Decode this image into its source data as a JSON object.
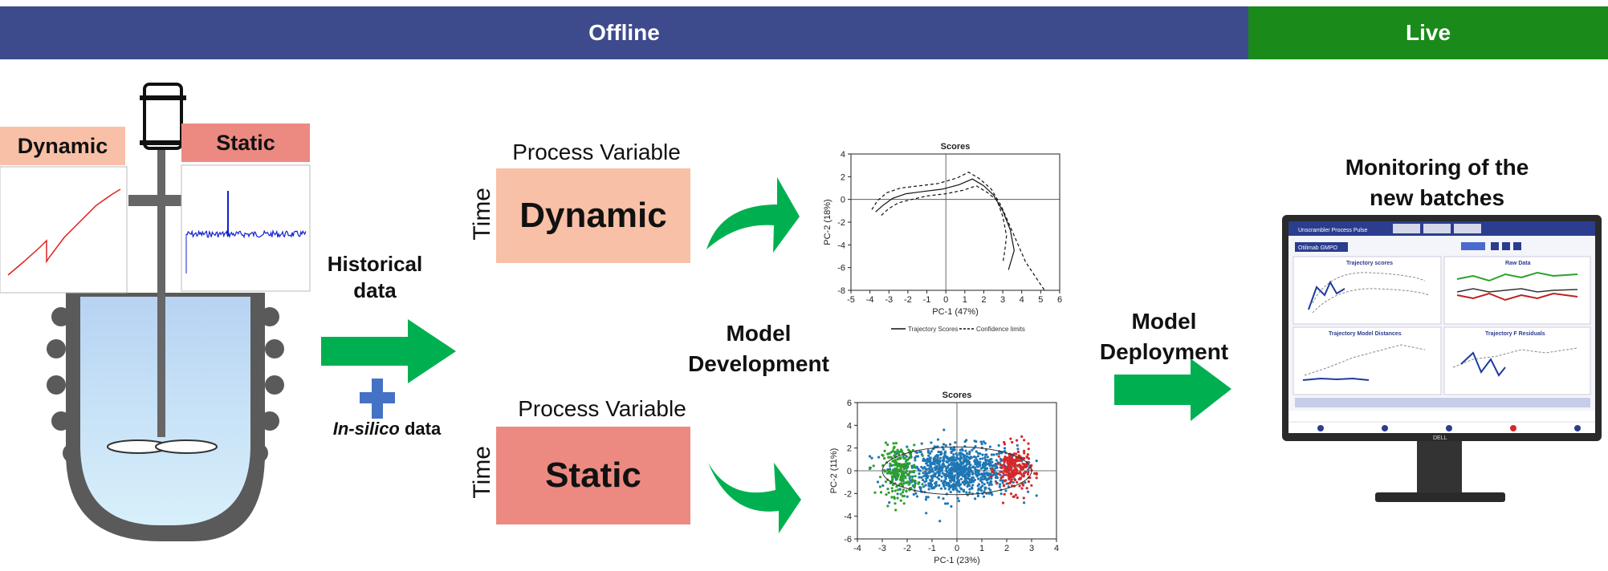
{
  "banners": {
    "offline": "Offline",
    "live": "Live"
  },
  "left": {
    "dynamic_tag": "Dynamic",
    "static_tag": "Static"
  },
  "middle": {
    "historical": "Historical\ndata",
    "in_silico_italic": "In-silico",
    "in_silico_rest": " data",
    "model_development": "Model\nDevelopment"
  },
  "boxes": {
    "top_header": "Process Variable",
    "top_label": "Dynamic",
    "bottom_header": "Process Variable",
    "bottom_label": "Static",
    "time_label": "Time"
  },
  "right": {
    "model_deployment": "Model\nDeployment",
    "monitoring": "Monitoring of the\nnew batches"
  },
  "chart_data": [
    {
      "type": "line",
      "title": "Scores",
      "xlabel": "PC-1 (47%)",
      "ylabel": "PC-2 (18%)",
      "xlim": [
        -5,
        6
      ],
      "ylim": [
        -8,
        4
      ],
      "xticks": [
        "-5",
        "-4",
        "-3",
        "-2",
        "-1",
        "0",
        "1",
        "2",
        "3",
        "4",
        "5",
        "6"
      ],
      "yticks": [
        "4",
        "2",
        "0",
        "-2",
        "-4",
        "-6",
        "-8"
      ],
      "legend": [
        "Trajectory Scores",
        "Confidence limits"
      ],
      "series": [
        {
          "name": "Trajectory Scores",
          "x": [
            -3.7,
            -3.3,
            -2.8,
            -2.1,
            -1.2,
            -0.2,
            0.7,
            1.4,
            2.0,
            2.5,
            3.0,
            3.4,
            3.6,
            3.3
          ],
          "y": [
            -1.1,
            -0.5,
            0.1,
            0.5,
            0.7,
            0.9,
            1.3,
            1.8,
            1.2,
            0.4,
            -1.0,
            -2.7,
            -4.5,
            -6.2
          ]
        },
        {
          "name": "Confidence limits",
          "x": [
            -3.9,
            -3.6,
            -3.1,
            -2.4,
            -1.4,
            -0.4,
            0.6,
            1.2,
            1.8,
            2.4,
            2.9,
            3.5,
            4.2,
            5.2
          ],
          "y": [
            -0.9,
            -0.1,
            0.6,
            1.0,
            1.2,
            1.4,
            1.9,
            2.4,
            1.8,
            0.9,
            -0.5,
            -2.8,
            -5.5,
            -8.0
          ]
        },
        {
          "name": "Confidence limits",
          "x": [
            -3.4,
            -3.0,
            -2.5,
            -1.8,
            -1.0,
            0.0,
            0.9,
            1.6,
            2.2,
            2.7,
            3.0,
            3.2,
            3.1,
            3.0
          ],
          "y": [
            -1.4,
            -0.8,
            -0.3,
            0.0,
            0.3,
            0.5,
            0.8,
            1.2,
            0.6,
            -0.1,
            -1.5,
            -3.2,
            -4.6,
            -5.6
          ]
        }
      ]
    },
    {
      "type": "scatter",
      "title": "Scores",
      "xlabel": "PC-1 (23%)",
      "ylabel": "PC-2 (11%)",
      "xlim": [
        -4,
        4
      ],
      "ylim": [
        -6,
        6
      ],
      "xticks": [
        "-4",
        "-3",
        "-2",
        "-1",
        "0",
        "1",
        "2",
        "3",
        "4"
      ],
      "yticks": [
        "6",
        "4",
        "2",
        "0",
        "-2",
        "-4",
        "-6"
      ],
      "series": [
        {
          "color": "#1f77b4",
          "cx": 0.0,
          "cy": 0.0,
          "sx": 1.2,
          "sy": 1.1,
          "n": 900
        },
        {
          "color": "#2ca02c",
          "cx": -2.3,
          "cy": 0.0,
          "sx": 0.35,
          "sy": 1.1,
          "n": 220
        },
        {
          "color": "#d62728",
          "cx": 2.3,
          "cy": 0.1,
          "sx": 0.35,
          "sy": 1.0,
          "n": 220
        }
      ]
    }
  ],
  "monitor": {
    "app_title": "Unscrambler Process Pulse",
    "project": "Otilimab GMPO",
    "panel1": "Trajectory scores",
    "panel2": "Raw Data",
    "panel3": "Trajectory Model Distances",
    "panel4": "Trajectory F Residuals",
    "brand": "DELL"
  },
  "colors": {
    "offline": "#3d4a8c",
    "live": "#1a8a1a",
    "arrow": "#00b050",
    "dynamic": "#f8c0a6",
    "static": "#ec8a82"
  }
}
